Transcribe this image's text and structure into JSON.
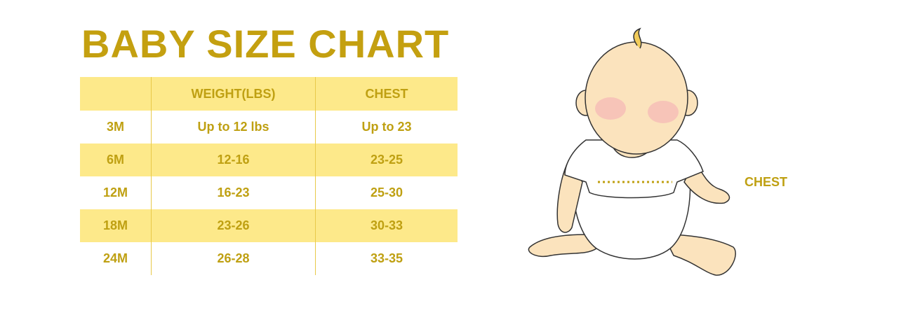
{
  "title": "BABY SIZE CHART",
  "table": {
    "headers": [
      "",
      "WEIGHT(LBS)",
      "CHEST"
    ],
    "rows": [
      [
        "3M",
        "Up to 12 lbs",
        "Up to 23"
      ],
      [
        "6M",
        "12-16",
        "23-25"
      ],
      [
        "12M",
        "16-23",
        "25-30"
      ],
      [
        "18M",
        "23-26",
        "30-33"
      ],
      [
        "24M",
        "26-28",
        "33-35"
      ]
    ]
  },
  "illustration": {
    "chest_label": "CHEST"
  },
  "colors": {
    "accent_text": "#c4a010",
    "band": "#fde98a",
    "skin": "#fbe3bd"
  }
}
